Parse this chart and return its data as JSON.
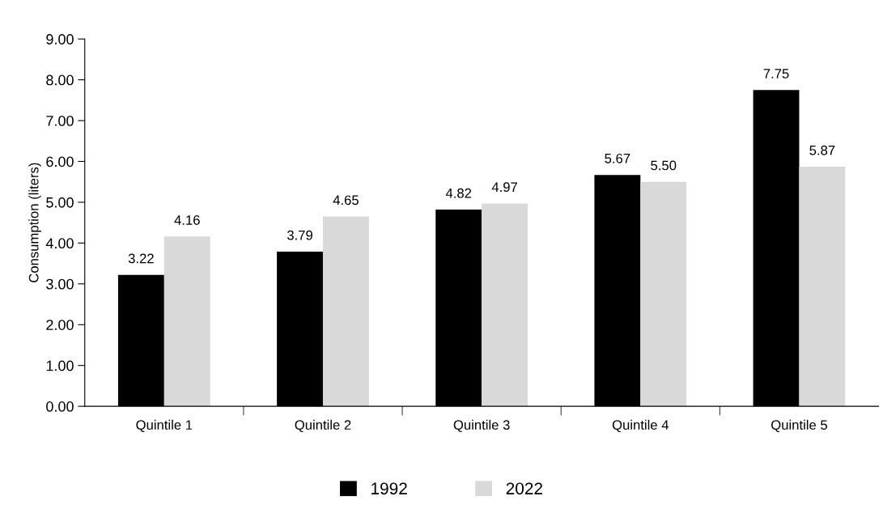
{
  "chart_data": {
    "type": "bar",
    "ylabel": "Consumption (liters)",
    "categories": [
      "Quintile 1",
      "Quintile 2",
      "Quintile 3",
      "Quintile 4",
      "Quintile 5"
    ],
    "series": [
      {
        "name": "1992",
        "color": "#000000",
        "values": [
          3.22,
          3.79,
          4.82,
          5.67,
          7.75
        ],
        "value_labels": [
          "3.22",
          "3.79",
          "4.82",
          "5.67",
          "7.75"
        ]
      },
      {
        "name": "2022",
        "color": "#d9d9d9",
        "values": [
          4.16,
          4.65,
          4.97,
          5.5,
          5.87
        ],
        "value_labels": [
          "4.16",
          "4.65",
          "4.97",
          "5.50",
          "5.87"
        ]
      }
    ],
    "ylim": [
      0,
      9
    ],
    "yticks": [
      {
        "value": 0,
        "label": "0.00"
      },
      {
        "value": 1,
        "label": "1.00"
      },
      {
        "value": 2,
        "label": "2.00"
      },
      {
        "value": 3,
        "label": "3.00"
      },
      {
        "value": 4,
        "label": "4.00"
      },
      {
        "value": 5,
        "label": "5.00"
      },
      {
        "value": 6,
        "label": "6.00"
      },
      {
        "value": 7,
        "label": "7.00"
      },
      {
        "value": 8,
        "label": "8.00"
      },
      {
        "value": 9,
        "label": "9.00"
      }
    ],
    "grid": false,
    "legend": "bottom"
  }
}
